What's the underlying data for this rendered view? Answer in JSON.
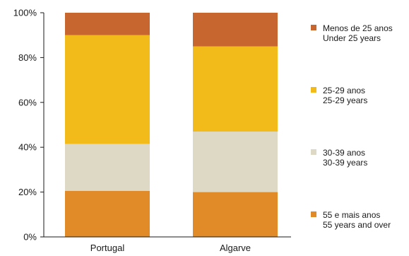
{
  "chart_data": {
    "type": "bar",
    "stacked": true,
    "categories": [
      "Portugal",
      "Algarve"
    ],
    "ylim": [
      0,
      100
    ],
    "yticks": [
      0,
      20,
      40,
      60,
      80,
      100
    ],
    "ytick_format": "{v}%",
    "grid": false,
    "legend_position": "right",
    "series": [
      {
        "name": "55 e mais anos",
        "name_en": "55 years and over",
        "color": "#e08a28",
        "values": [
          20.5,
          20
        ]
      },
      {
        "name": "30-39 anos",
        "name_en": "30-39 years",
        "color": "#ddd9c4",
        "values": [
          21,
          27
        ]
      },
      {
        "name": "25-29 anos",
        "name_en": "25-29 years",
        "color": "#f3bb19",
        "values": [
          48.5,
          38
        ]
      },
      {
        "name": "Menos de 25 anos",
        "name_en": "Under 25 years",
        "color": "#c8662f",
        "values": [
          10,
          15
        ]
      }
    ]
  }
}
